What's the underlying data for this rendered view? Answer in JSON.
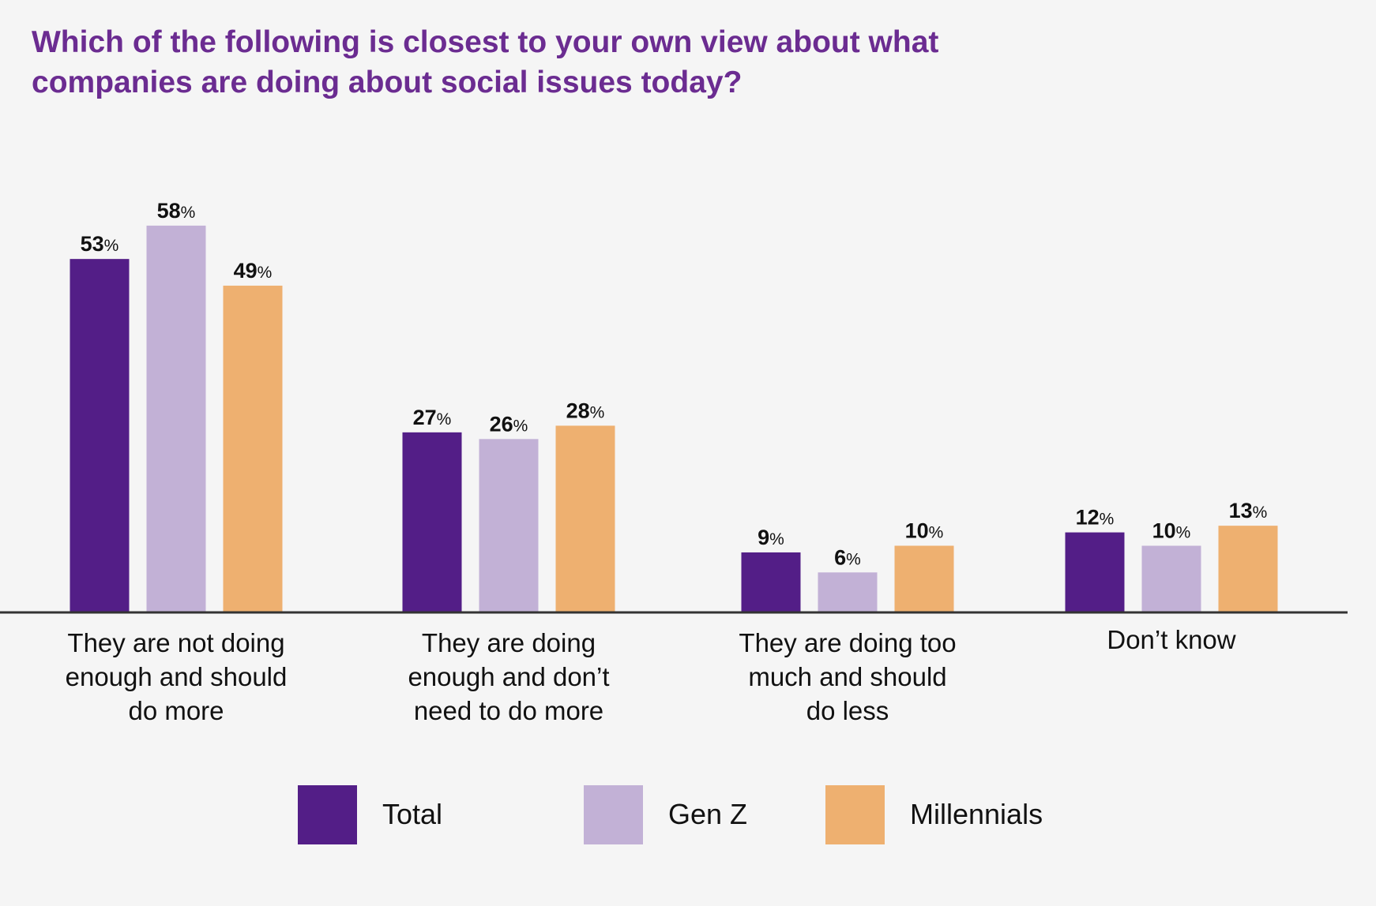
{
  "title_lines": [
    "Which of the following is closest to your own view about what",
    "companies are doing about social issues today?"
  ],
  "colors": {
    "title": "#6b2c91",
    "Total": "#531e87",
    "Gen Z": "#c2b1d6",
    "Millennials": "#eeb070",
    "baseline": "#333333",
    "background": "#f5f5f5"
  },
  "chart_data": {
    "type": "bar",
    "title": "Which of the following is closest to your own view about what companies are doing about social issues today?",
    "categories": [
      [
        "They are not doing",
        "enough and should",
        "do more"
      ],
      [
        "They are doing",
        "enough and don’t",
        "need to do more"
      ],
      [
        "They are doing too",
        "much and should",
        "do less"
      ],
      [
        "Don’t know"
      ]
    ],
    "series": [
      {
        "name": "Total",
        "values": [
          53,
          27,
          9,
          12
        ]
      },
      {
        "name": "Gen Z",
        "values": [
          58,
          26,
          6,
          10
        ]
      },
      {
        "name": "Millennials",
        "values": [
          49,
          28,
          10,
          13
        ]
      }
    ],
    "value_suffix": "%",
    "ylim": [
      0,
      60
    ],
    "grid": false,
    "legend_position": "bottom"
  },
  "legend": [
    {
      "label": "Total",
      "color": "#531e87"
    },
    {
      "label": "Gen Z",
      "color": "#c2b1d6"
    },
    {
      "label": "Millennials",
      "color": "#eeb070"
    }
  ]
}
